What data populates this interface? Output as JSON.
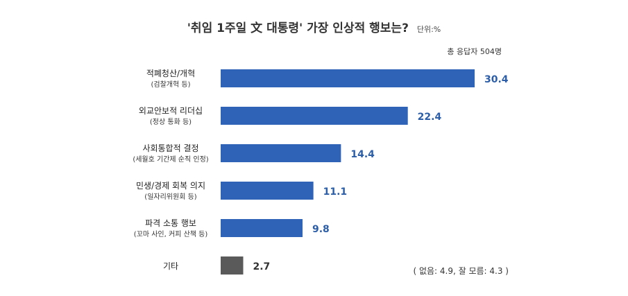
{
  "chart_data": {
    "type": "bar",
    "orientation": "horizontal",
    "title": "'취임 1주일 文 대통령' 가장 인상적  행보는?",
    "unit": "단위:%",
    "respondents": "총 응답자 504명",
    "categories": [
      {
        "label": "적폐청산/개혁",
        "sub": "(검찰개혁 등)"
      },
      {
        "label": "외교안보적 리더십",
        "sub": "(정상 통화 등)"
      },
      {
        "label": "사회통합적 결정",
        "sub": "(세월호 기간제 순직 인정)"
      },
      {
        "label": "민생/경제 회복 의지",
        "sub": "(일자리위원회 등)"
      },
      {
        "label": "파격 소통 행보",
        "sub": "(꼬마 사인, 커피 산책 등)"
      },
      {
        "label": "기타",
        "sub": ""
      }
    ],
    "values": [
      30.4,
      22.4,
      14.4,
      11.1,
      9.8,
      2.7
    ],
    "value_labels": [
      "30.4",
      "22.4",
      "14.4",
      "11.1",
      "9.8",
      "2.7"
    ],
    "xlim": [
      0,
      30.4
    ],
    "footnote": "( 없음: 4.9, 잘 모름: 4.3 )",
    "colors": {
      "main_bar": "#2e63b8",
      "other_bar": "#5a5a5a",
      "main_value": "#2c5ea8",
      "other_value": "#333333"
    }
  }
}
